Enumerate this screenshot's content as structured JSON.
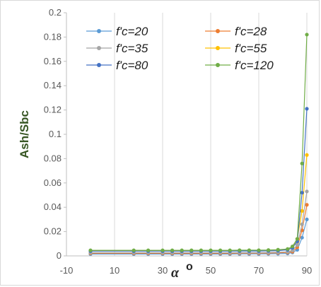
{
  "chart_data": {
    "type": "scatter",
    "title": "",
    "ylabel": "Ash/Sbc",
    "xlabel_symbol": "α",
    "xlabel_unit": "o",
    "xlim": [
      -10,
      90
    ],
    "ylim": [
      0,
      0.2
    ],
    "x_ticks": [
      "-10",
      "10",
      "30",
      "50",
      "70",
      "90"
    ],
    "y_ticks": [
      "0",
      "0.02",
      "0.04",
      "0.06",
      "0.08",
      "0.1",
      "0.12",
      "0.14",
      "0.16",
      "0.18",
      "0.2"
    ],
    "grid": "vertical",
    "legend_position": "top",
    "x": [
      0,
      18,
      24,
      30,
      34,
      38,
      42,
      46,
      50,
      54,
      58,
      62,
      66,
      70,
      74,
      78,
      82,
      84,
      86,
      88,
      90
    ],
    "series": [
      {
        "name": "f'c=20",
        "color": "#5b9bd5",
        "values": [
          0.0015,
          0.0015,
          0.0015,
          0.0015,
          0.0015,
          0.0015,
          0.0015,
          0.0015,
          0.0015,
          0.0015,
          0.0015,
          0.0016,
          0.0016,
          0.0016,
          0.0017,
          0.0018,
          0.002,
          0.0028,
          0.005,
          0.015,
          0.03
        ]
      },
      {
        "name": "f'c=28",
        "color": "#ed7d31",
        "values": [
          0.0021,
          0.0021,
          0.0021,
          0.0021,
          0.0021,
          0.0021,
          0.0021,
          0.0021,
          0.0021,
          0.0021,
          0.0021,
          0.0022,
          0.0022,
          0.0022,
          0.0023,
          0.0025,
          0.0028,
          0.0035,
          0.007,
          0.021,
          0.042
        ]
      },
      {
        "name": "f'c=35",
        "color": "#a5a5a5",
        "values": [
          0.0026,
          0.0026,
          0.0026,
          0.0026,
          0.0026,
          0.0026,
          0.0026,
          0.0026,
          0.0026,
          0.0026,
          0.0026,
          0.0027,
          0.0027,
          0.0027,
          0.0028,
          0.003,
          0.0034,
          0.0045,
          0.009,
          0.026,
          0.053
        ]
      },
      {
        "name": "f'c=55",
        "color": "#ffc000",
        "values": [
          0.0041,
          0.0041,
          0.0041,
          0.0041,
          0.0041,
          0.0041,
          0.0041,
          0.0041,
          0.0041,
          0.0041,
          0.0041,
          0.0042,
          0.0042,
          0.0042,
          0.0043,
          0.0046,
          0.0052,
          0.007,
          0.014,
          0.037,
          0.083
        ]
      },
      {
        "name": "f'c=80",
        "color": "#4472c4",
        "values": [
          0.0039,
          0.0039,
          0.0039,
          0.0039,
          0.0039,
          0.0039,
          0.0039,
          0.0039,
          0.0039,
          0.0039,
          0.0039,
          0.004,
          0.004,
          0.004,
          0.0041,
          0.0043,
          0.005,
          0.0066,
          0.012,
          0.052,
          0.121
        ]
      },
      {
        "name": "f'c=120",
        "color": "#70ad47",
        "values": [
          0.0046,
          0.0046,
          0.0046,
          0.0046,
          0.0046,
          0.0046,
          0.0046,
          0.0046,
          0.0046,
          0.0046,
          0.0046,
          0.0047,
          0.0047,
          0.0047,
          0.0048,
          0.0051,
          0.0057,
          0.0078,
          0.014,
          0.076,
          0.182
        ]
      }
    ]
  }
}
